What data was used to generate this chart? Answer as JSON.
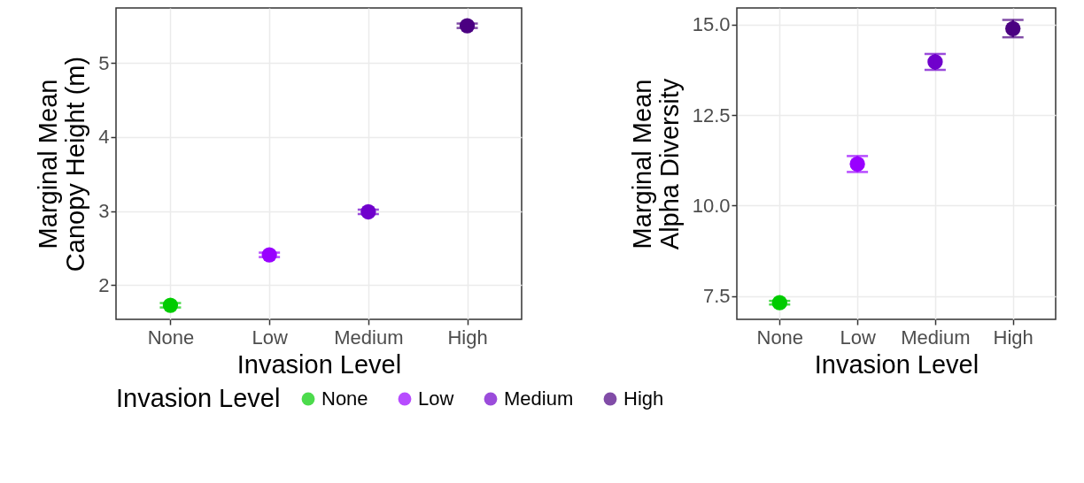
{
  "chart_data": [
    {
      "type": "scatter",
      "categories": [
        "None",
        "Low",
        "Medium",
        "High"
      ],
      "xlabel": "Invasion Level",
      "ylabel": "Marginal Mean\nCanopy Height (m)",
      "ylim": [
        1.54,
        5.74
      ],
      "yticks": [
        2,
        3,
        4,
        5
      ],
      "grid": true,
      "marker": "circle",
      "legend": "bottom",
      "legend_title": "Invasion Level",
      "series": [
        {
          "name": "None",
          "color": "#00cc00",
          "values": [
            1.73,
            null,
            null,
            null
          ],
          "errors": [
            0.03,
            null,
            null,
            null
          ]
        },
        {
          "name": "Low",
          "color": "#9900ff",
          "values": [
            null,
            2.41,
            null,
            null
          ],
          "errors": [
            null,
            0.03,
            null,
            null
          ]
        },
        {
          "name": "Medium",
          "color": "#7000cc",
          "values": [
            null,
            null,
            2.99,
            null
          ],
          "errors": [
            null,
            null,
            0.03,
            null
          ]
        },
        {
          "name": "High",
          "color": "#4b0082",
          "values": [
            null,
            null,
            null,
            5.5
          ],
          "errors": [
            null,
            null,
            null,
            0.03
          ]
        }
      ]
    },
    {
      "type": "scatter",
      "categories": [
        "None",
        "Low",
        "Medium",
        "High"
      ],
      "xlabel": "Invasion Level",
      "ylabel": "Marginal Mean\nAlpha Diversity",
      "ylim": [
        6.86,
        15.46
      ],
      "yticks": [
        7.5,
        {
          "value": 10,
          "label": "10.0"
        },
        12.5,
        {
          "value": 15,
          "label": "15.0"
        }
      ],
      "grid": true,
      "marker": "circle",
      "series": [
        {
          "name": "None",
          "color": "#00cc00",
          "values": [
            7.32,
            null,
            null,
            null
          ],
          "errors": [
            0.05,
            null,
            null,
            null
          ]
        },
        {
          "name": "Low",
          "color": "#9900ff",
          "values": [
            null,
            11.15,
            null,
            null
          ],
          "errors": [
            null,
            0.22,
            null,
            null
          ]
        },
        {
          "name": "Medium",
          "color": "#7000cc",
          "values": [
            null,
            null,
            13.97,
            null
          ],
          "errors": [
            null,
            null,
            0.22,
            null
          ]
        },
        {
          "name": "High",
          "color": "#4b0082",
          "values": [
            null,
            null,
            null,
            14.89
          ],
          "errors": [
            null,
            null,
            null,
            0.24
          ]
        }
      ]
    }
  ]
}
